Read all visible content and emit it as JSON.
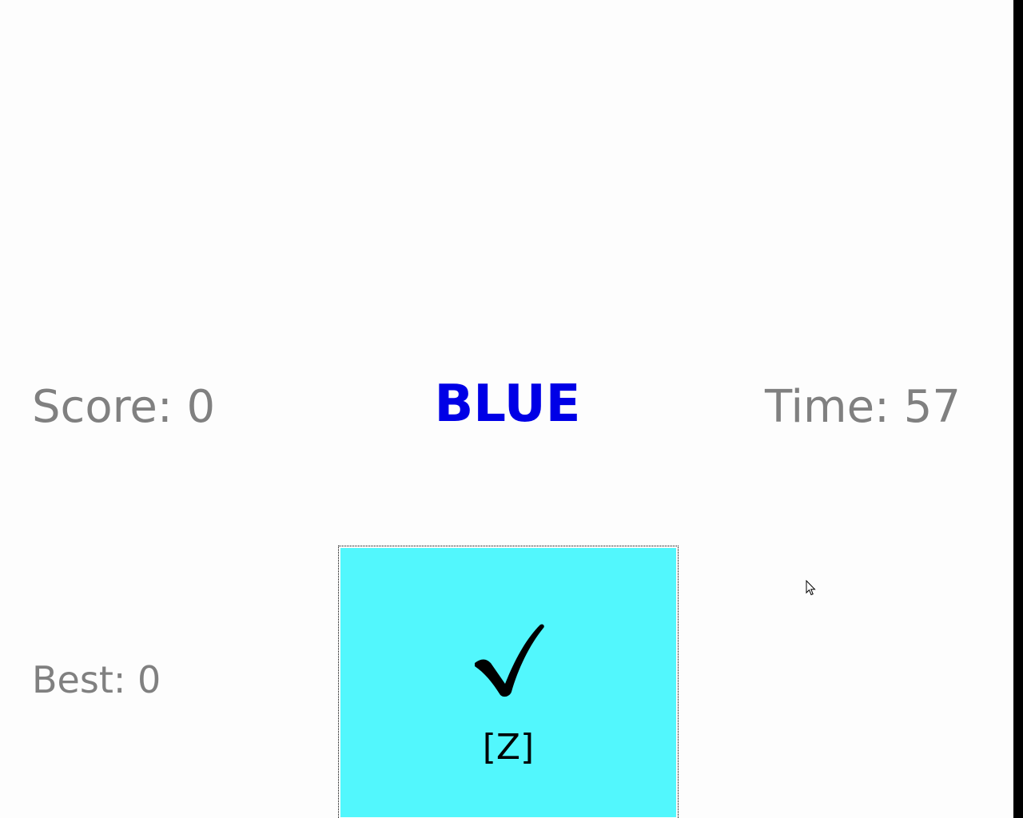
{
  "hud": {
    "score_label": "Score: 0",
    "time_label": "Time: 57",
    "best_label": "Best: 0"
  },
  "prompt": {
    "word": "BLUE",
    "word_color": "#0000e6"
  },
  "answer_button": {
    "icon": "check-icon",
    "key_hint": "[Z]",
    "background_color": "#52f7fd"
  }
}
